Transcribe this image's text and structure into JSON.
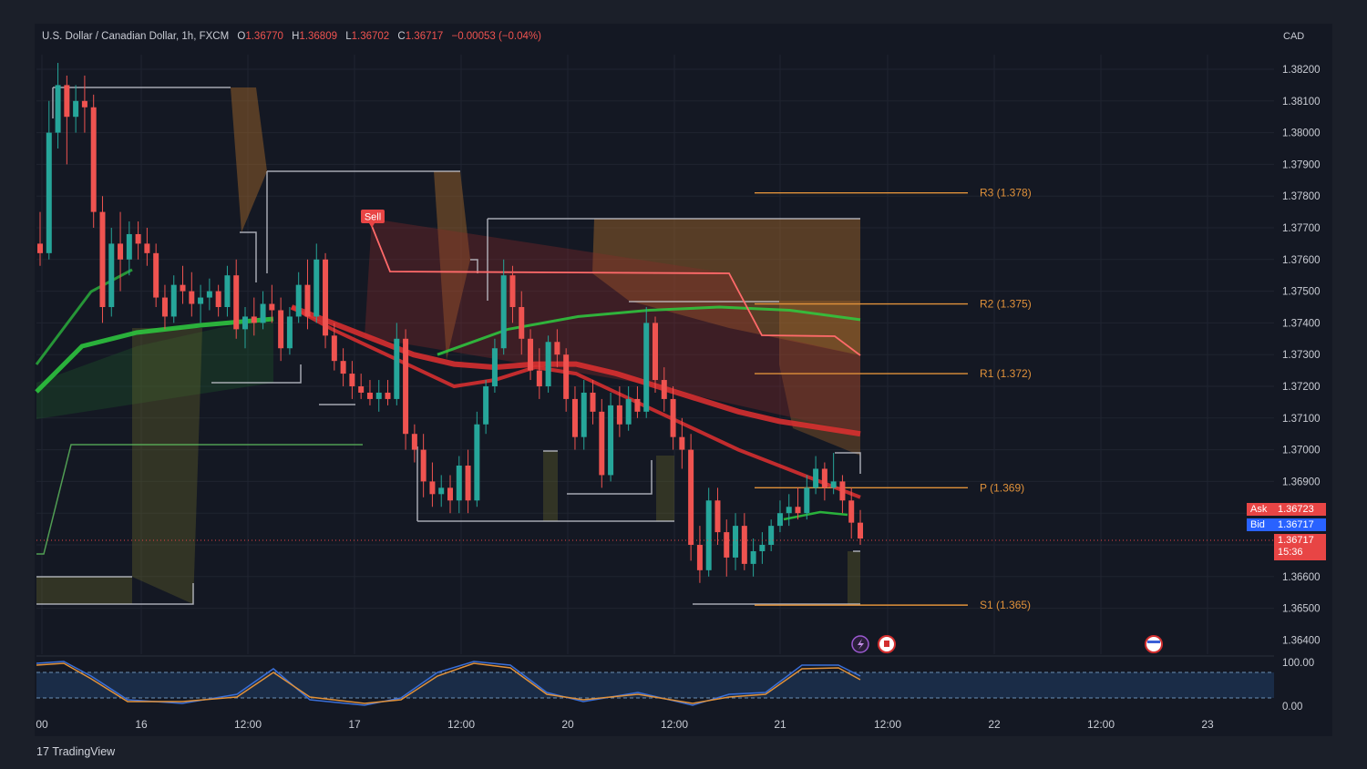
{
  "header": {
    "symbol": "U.S. Dollar / Canadian Dollar, 1h, FXCM",
    "o_label": "O",
    "o_value": "1.36770",
    "h_label": "H",
    "h_value": "1.36809",
    "l_label": "L",
    "l_value": "1.36702",
    "c_label": "C",
    "c_value": "1.36717",
    "change": "−0.00053 (−0.04%)"
  },
  "currency": "CAD",
  "ask": {
    "label": "Ask",
    "value": "1.36723"
  },
  "bid": {
    "label": "Bid",
    "value": "1.36717"
  },
  "last": {
    "value": "1.36717",
    "countdown": "15:36"
  },
  "sell_label": "Sell",
  "logo_text": "TradingView",
  "colors": {
    "up": "#26a69a",
    "down": "#ef5350",
    "pivot": "#e0913a",
    "ema_red": "#e03030",
    "ema_green": "#2ecc40",
    "band": "#c9ccd4"
  },
  "chart_data": {
    "type": "candlestick",
    "y_ticks": [
      "1.38200",
      "1.38100",
      "1.38000",
      "1.37900",
      "1.37800",
      "1.37700",
      "1.37600",
      "1.37500",
      "1.37400",
      "1.37300",
      "1.37200",
      "1.37100",
      "1.37000",
      "1.36900",
      "1.36600",
      "1.36500",
      "1.36400"
    ],
    "ylim": [
      1.3636,
      1.3825
    ],
    "x_ticks": [
      "00",
      "16",
      "12:00",
      "17",
      "12:00",
      "20",
      "12:00",
      "21",
      "12:00",
      "22",
      "12:00",
      "23"
    ],
    "pivot_levels": [
      {
        "label": "R3 (1.378)",
        "value": 1.3781
      },
      {
        "label": "R2 (1.375)",
        "value": 1.3746
      },
      {
        "label": "R1 (1.372)",
        "value": 1.3724
      },
      {
        "label": "P (1.369)",
        "value": 1.3688
      },
      {
        "label": "S1 (1.365)",
        "value": 1.3651
      }
    ],
    "candles_ohlc": [
      [
        1.3765,
        1.3775,
        1.3758,
        1.3762
      ],
      [
        1.3762,
        1.381,
        1.376,
        1.38
      ],
      [
        1.38,
        1.3822,
        1.3795,
        1.3815
      ],
      [
        1.3815,
        1.3818,
        1.379,
        1.3805
      ],
      [
        1.3805,
        1.3815,
        1.38,
        1.381
      ],
      [
        1.381,
        1.3818,
        1.38,
        1.3808
      ],
      [
        1.3808,
        1.3812,
        1.377,
        1.3775
      ],
      [
        1.3775,
        1.378,
        1.374,
        1.3745
      ],
      [
        1.3745,
        1.377,
        1.3742,
        1.3765
      ],
      [
        1.3765,
        1.3775,
        1.375,
        1.376
      ],
      [
        1.376,
        1.3772,
        1.3755,
        1.3768
      ],
      [
        1.3768,
        1.3772,
        1.376,
        1.3765
      ],
      [
        1.3765,
        1.377,
        1.3758,
        1.3762
      ],
      [
        1.3762,
        1.3765,
        1.3745,
        1.3748
      ],
      [
        1.3748,
        1.3752,
        1.3738,
        1.3742
      ],
      [
        1.3742,
        1.3755,
        1.374,
        1.3752
      ],
      [
        1.3752,
        1.3758,
        1.3746,
        1.375
      ],
      [
        1.375,
        1.3756,
        1.3742,
        1.3746
      ],
      [
        1.3746,
        1.3752,
        1.374,
        1.3748
      ],
      [
        1.3748,
        1.3754,
        1.3744,
        1.375
      ],
      [
        1.375,
        1.3752,
        1.3742,
        1.3745
      ],
      [
        1.3745,
        1.3758,
        1.3742,
        1.3755
      ],
      [
        1.3755,
        1.376,
        1.3735,
        1.3738
      ],
      [
        1.3738,
        1.3745,
        1.3732,
        1.3742
      ],
      [
        1.3742,
        1.3748,
        1.3736,
        1.374
      ],
      [
        1.374,
        1.375,
        1.3738,
        1.3746
      ],
      [
        1.3746,
        1.3752,
        1.374,
        1.3744
      ],
      [
        1.3744,
        1.3748,
        1.3728,
        1.3732
      ],
      [
        1.3732,
        1.3745,
        1.373,
        1.3742
      ],
      [
        1.3742,
        1.3756,
        1.374,
        1.3752
      ],
      [
        1.3752,
        1.376,
        1.3738,
        1.3742
      ],
      [
        1.3742,
        1.3765,
        1.374,
        1.376
      ],
      [
        1.376,
        1.3762,
        1.3732,
        1.3736
      ],
      [
        1.3736,
        1.374,
        1.3725,
        1.3728
      ],
      [
        1.3728,
        1.3732,
        1.372,
        1.3724
      ],
      [
        1.3724,
        1.3728,
        1.3716,
        1.372
      ],
      [
        1.372,
        1.3724,
        1.3716,
        1.3718
      ],
      [
        1.3718,
        1.3722,
        1.3714,
        1.3716
      ],
      [
        1.3716,
        1.3722,
        1.3712,
        1.3718
      ],
      [
        1.3718,
        1.3722,
        1.3714,
        1.3716
      ],
      [
        1.3716,
        1.374,
        1.3714,
        1.3735
      ],
      [
        1.3735,
        1.3738,
        1.37,
        1.3705
      ],
      [
        1.3705,
        1.3708,
        1.3696,
        1.37
      ],
      [
        1.37,
        1.3705,
        1.3685,
        1.369
      ],
      [
        1.369,
        1.3696,
        1.3682,
        1.3686
      ],
      [
        1.3686,
        1.3692,
        1.3682,
        1.3688
      ],
      [
        1.3688,
        1.3692,
        1.368,
        1.3684
      ],
      [
        1.3684,
        1.3698,
        1.368,
        1.3695
      ],
      [
        1.3695,
        1.37,
        1.368,
        1.3684
      ],
      [
        1.3684,
        1.3712,
        1.3682,
        1.3708
      ],
      [
        1.3708,
        1.3722,
        1.3705,
        1.372
      ],
      [
        1.372,
        1.3735,
        1.3718,
        1.3732
      ],
      [
        1.3732,
        1.376,
        1.373,
        1.3755
      ],
      [
        1.3755,
        1.3758,
        1.374,
        1.3745
      ],
      [
        1.3745,
        1.375,
        1.373,
        1.3735
      ],
      [
        1.3735,
        1.3738,
        1.3722,
        1.3725
      ],
      [
        1.3725,
        1.3732,
        1.3716,
        1.372
      ],
      [
        1.372,
        1.3736,
        1.3718,
        1.3734
      ],
      [
        1.3734,
        1.3738,
        1.3726,
        1.373
      ],
      [
        1.373,
        1.3732,
        1.3712,
        1.3716
      ],
      [
        1.3716,
        1.372,
        1.37,
        1.3704
      ],
      [
        1.3704,
        1.3722,
        1.37,
        1.3718
      ],
      [
        1.3718,
        1.3722,
        1.3708,
        1.3712
      ],
      [
        1.3712,
        1.3716,
        1.3688,
        1.3692
      ],
      [
        1.3692,
        1.3718,
        1.369,
        1.3714
      ],
      [
        1.3714,
        1.372,
        1.3704,
        1.3708
      ],
      [
        1.3708,
        1.372,
        1.3706,
        1.3716
      ],
      [
        1.3716,
        1.372,
        1.371,
        1.3712
      ],
      [
        1.3712,
        1.3745,
        1.371,
        1.374
      ],
      [
        1.374,
        1.3742,
        1.3718,
        1.3722
      ],
      [
        1.3722,
        1.3726,
        1.3712,
        1.3716
      ],
      [
        1.3716,
        1.372,
        1.37,
        1.3704
      ],
      [
        1.3704,
        1.371,
        1.3694,
        1.37
      ],
      [
        1.37,
        1.3705,
        1.3665,
        1.367
      ],
      [
        1.367,
        1.3676,
        1.3658,
        1.3662
      ],
      [
        1.3662,
        1.3688,
        1.366,
        1.3684
      ],
      [
        1.3684,
        1.3688,
        1.367,
        1.3674
      ],
      [
        1.3674,
        1.3678,
        1.366,
        1.3666
      ],
      [
        1.3666,
        1.368,
        1.3662,
        1.3676
      ],
      [
        1.3676,
        1.368,
        1.3662,
        1.3664
      ],
      [
        1.3664,
        1.3672,
        1.366,
        1.3668
      ],
      [
        1.3668,
        1.3674,
        1.3664,
        1.367
      ],
      [
        1.367,
        1.3678,
        1.3668,
        1.3676
      ],
      [
        1.3676,
        1.3684,
        1.3674,
        1.368
      ],
      [
        1.368,
        1.3686,
        1.3676,
        1.3682
      ],
      [
        1.3682,
        1.3688,
        1.3678,
        1.368
      ],
      [
        1.368,
        1.3692,
        1.3678,
        1.3688
      ],
      [
        1.3688,
        1.3698,
        1.3686,
        1.3694
      ],
      [
        1.3694,
        1.3696,
        1.3684,
        1.3688
      ],
      [
        1.3688,
        1.3699,
        1.3686,
        1.369
      ],
      [
        1.369,
        1.3692,
        1.368,
        1.3684
      ],
      [
        1.3684,
        1.3688,
        1.3672,
        1.3677
      ],
      [
        1.3677,
        1.3681,
        1.367,
        1.3672
      ]
    ],
    "ema_lines": [
      {
        "color": "ema_red",
        "values": [
          1.3745,
          1.3738,
          1.3732,
          1.3726,
          1.372,
          1.3722,
          1.3726,
          1.3724,
          1.3718,
          1.3712,
          1.3706,
          1.37,
          1.3695,
          1.369,
          1.3685
        ]
      },
      {
        "color": "ema_red",
        "values": [
          1.3745,
          1.374,
          1.3735,
          1.373,
          1.3727,
          1.3726,
          1.3727,
          1.3727,
          1.3724,
          1.372,
          1.3716,
          1.3712,
          1.3709,
          1.3707,
          1.3705
        ]
      },
      {
        "color": "ema_green",
        "values": [
          1.373,
          1.3738,
          1.3742,
          1.3744,
          1.3745,
          1.3744,
          1.3741
        ]
      }
    ]
  }
}
